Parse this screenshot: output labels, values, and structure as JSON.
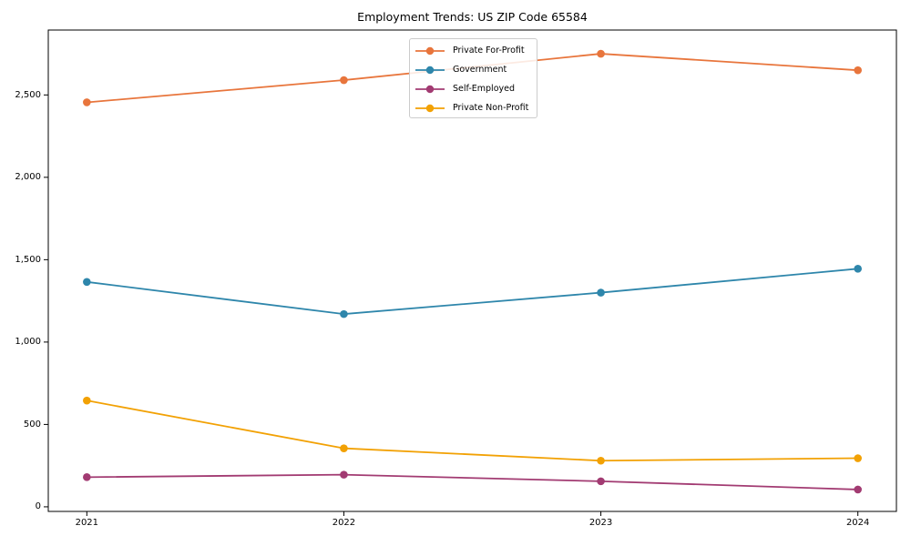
{
  "chart_data": {
    "type": "line",
    "title": "Employment Trends: US ZIP Code 65584",
    "categories": [
      "2021",
      "2022",
      "2023",
      "2024"
    ],
    "series": [
      {
        "name": "Private For-Profit",
        "color": "#E8753C",
        "values": [
          2455,
          2590,
          2750,
          2650
        ]
      },
      {
        "name": "Government",
        "color": "#2E86AB",
        "values": [
          1365,
          1170,
          1300,
          1445
        ]
      },
      {
        "name": "Self-Employed",
        "color": "#A23B72",
        "values": [
          180,
          195,
          155,
          105
        ]
      },
      {
        "name": "Private Non-Profit",
        "color": "#F2A104",
        "values": [
          645,
          355,
          280,
          295
        ]
      }
    ],
    "yticks": [
      {
        "v": 0,
        "label": "0"
      },
      {
        "v": 500,
        "label": "500"
      },
      {
        "v": 1000,
        "label": "1,000"
      },
      {
        "v": 1500,
        "label": "1,500"
      },
      {
        "v": 2000,
        "label": "2,000"
      },
      {
        "v": 2500,
        "label": "2,500"
      }
    ],
    "xlabel": "",
    "ylabel": "",
    "xlim": [
      -0.15,
      3.15
    ],
    "ylim": [
      -28,
      2894
    ],
    "grid": false,
    "legend_position": "upper center",
    "axis_color": "#000000",
    "legend_border_color": "#cccccc",
    "background": "#ffffff"
  }
}
